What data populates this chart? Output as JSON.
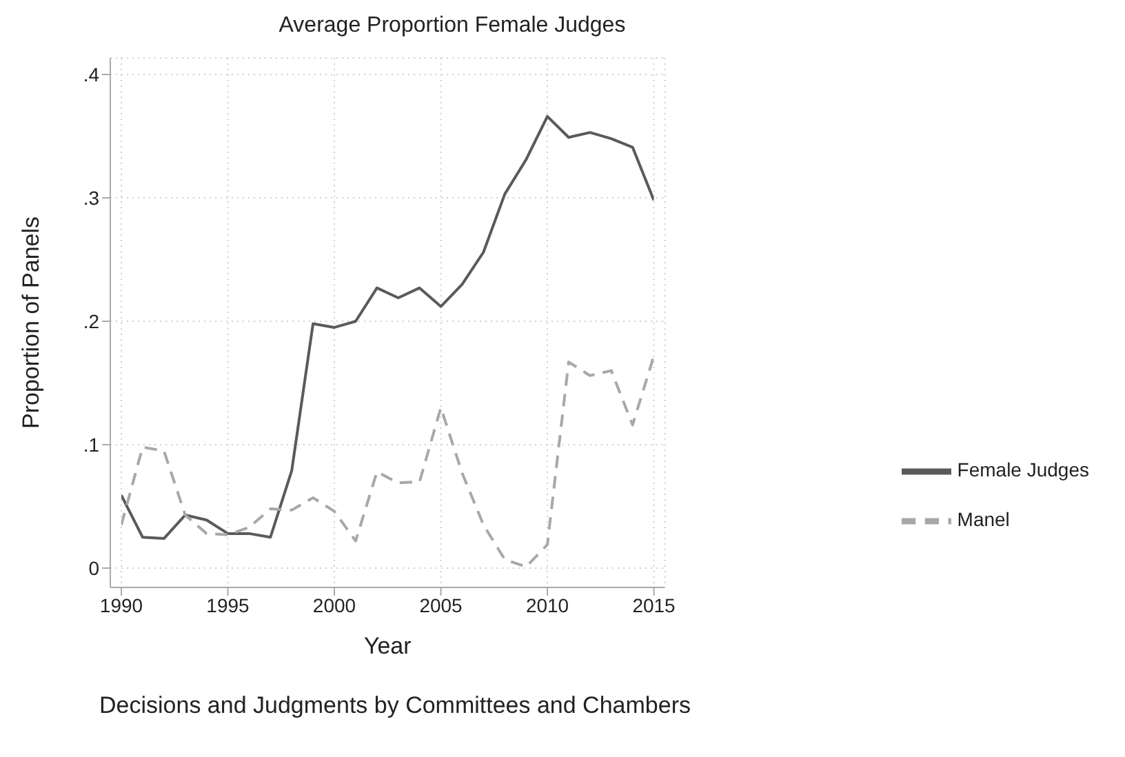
{
  "chart_data": {
    "type": "line",
    "title": "Average Proportion Female Judges",
    "xlabel": "Year",
    "ylabel": "Proportion of Panels",
    "annotations": [
      "Decisions and Judgments by Committees and Chambers"
    ],
    "x": [
      1990,
      1991,
      1992,
      1993,
      1994,
      1995,
      1996,
      1997,
      1998,
      1999,
      2000,
      2001,
      2002,
      2003,
      2004,
      2005,
      2006,
      2007,
      2008,
      2009,
      2010,
      2011,
      2012,
      2013,
      2014,
      2015
    ],
    "series": [
      {
        "name": "Female Judges",
        "color": "#5a5a5a",
        "line_style": "solid",
        "values": [
          0.059,
          0.025,
          0.024,
          0.043,
          0.039,
          0.028,
          0.028,
          0.025,
          0.079,
          0.198,
          0.195,
          0.2,
          0.227,
          0.219,
          0.227,
          0.212,
          0.23,
          0.256,
          0.303,
          0.331,
          0.366,
          0.349,
          0.353,
          0.348,
          0.341,
          0.298
        ]
      },
      {
        "name": "Manel",
        "color": "#a8a8a8",
        "line_style": "dashed",
        "values": [
          0.035,
          0.098,
          0.095,
          0.043,
          0.028,
          0.027,
          0.033,
          0.048,
          0.047,
          0.057,
          0.046,
          0.022,
          0.078,
          0.069,
          0.07,
          0.13,
          0.077,
          0.035,
          0.007,
          0.001,
          0.019,
          0.167,
          0.156,
          0.16,
          0.116,
          0.172
        ]
      }
    ],
    "xlim": [
      1990,
      2015
    ],
    "xticks": [
      1990,
      1995,
      2000,
      2005,
      2010,
      2015
    ],
    "ylim": [
      0,
      0.4
    ],
    "yticks": [
      {
        "value": 0,
        "label": "0"
      },
      {
        "value": 0.1,
        "label": ".1"
      },
      {
        "value": 0.2,
        "label": ".2"
      },
      {
        "value": 0.3,
        "label": ".3"
      },
      {
        "value": 0.4,
        "label": ".4"
      }
    ],
    "grid": true,
    "legend": "right",
    "marker": "none"
  }
}
